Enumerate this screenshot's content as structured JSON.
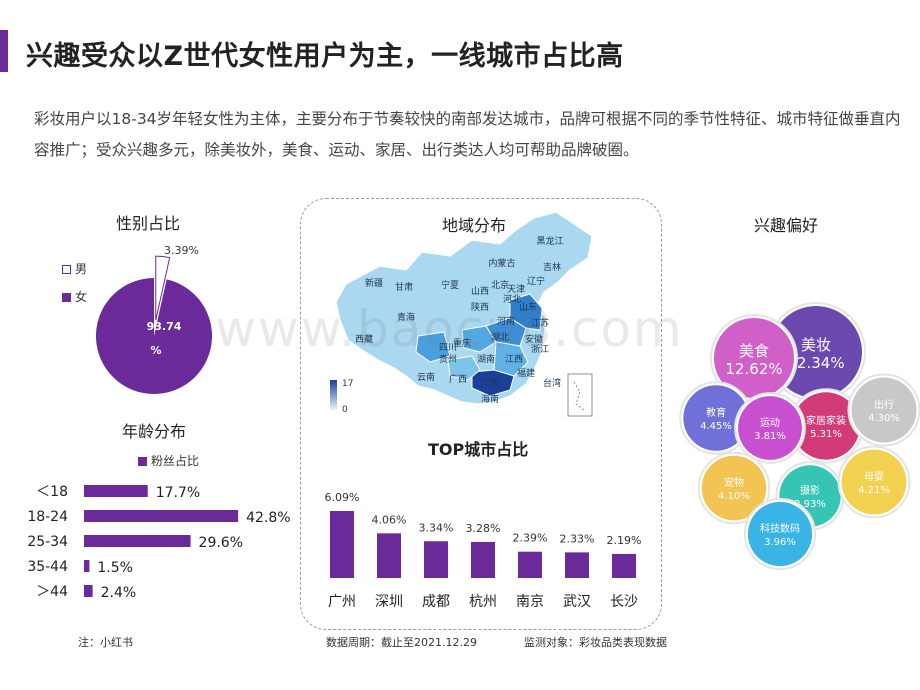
{
  "header": {
    "title": "兴趣受众以Z世代女性用户为主，一线城市占比高",
    "intro": "彩妆用户以18-34岁年轻女性为主体，主要分布于节奏较快的南部发达城市，品牌可根据不同的季节性特征、城市特征做垂直内容推广；受众兴趣多元，除美妆外，美食、运动、家居、出行类达人均可帮助品牌破圈。"
  },
  "colors": {
    "accent": "#6b2a9a",
    "bar": "#6b2a9a",
    "map_light": "#a9d8f0",
    "map_dark": "#1c3f9a"
  },
  "footer": {
    "note": "注：小红书",
    "period": "数据周期：截止至2021.12.29",
    "object": "监测对象：彩妆品类表现数据"
  },
  "watermark": "www.baocu8.com",
  "map": {
    "title": "地域分布",
    "legend_max": "17",
    "legend_min": "0",
    "regions": [
      "黑龙江",
      "吉林",
      "辽宁",
      "内蒙古",
      "新疆",
      "甘肃",
      "宁夏",
      "北京",
      "天津",
      "山西",
      "河北",
      "陕西",
      "山东",
      "青海",
      "西藏",
      "河南",
      "江苏",
      "四川",
      "湖北",
      "安徽",
      "重庆",
      "浙江",
      "江西",
      "贵州",
      "湖南",
      "云南",
      "广西",
      "福建",
      "广东",
      "台湾",
      "海南"
    ]
  },
  "chart_data": [
    {
      "type": "pie",
      "title": "性别占比",
      "categories": [
        "男",
        "女"
      ],
      "values": [
        3.39,
        93.74
      ],
      "data_labels": [
        "3.39%",
        "93.74%"
      ],
      "legend": "left"
    },
    {
      "type": "bar",
      "orientation": "horizontal",
      "title": "年龄分布",
      "categories": [
        "＜18",
        "18-24",
        "25-34",
        "35-44",
        "＞44"
      ],
      "series": [
        {
          "name": "粉丝占比",
          "values": [
            17.7,
            42.8,
            29.6,
            1.5,
            2.4
          ]
        }
      ],
      "data_labels": [
        "17.7%",
        "42.8%",
        "29.6%",
        "1.5%",
        "2.4%"
      ],
      "legend": "top"
    },
    {
      "type": "bar",
      "title": "TOP城市占比",
      "categories": [
        "广州",
        "深圳",
        "成都",
        "杭州",
        "南京",
        "武汉",
        "长沙"
      ],
      "values": [
        6.09,
        4.06,
        3.34,
        3.28,
        2.39,
        2.33,
        2.19
      ],
      "data_labels": [
        "6.09%",
        "4.06%",
        "3.34%",
        "3.28%",
        "2.39%",
        "2.33%",
        "2.19%"
      ]
    },
    {
      "type": "bubble",
      "title": "兴趣偏好",
      "items": [
        {
          "label": "美妆",
          "value": 22.34,
          "value_text": "22.34%",
          "color": "#6b4ab0"
        },
        {
          "label": "美食",
          "value": 12.62,
          "value_text": "12.62%",
          "color": "#d060c8"
        },
        {
          "label": "家居家装",
          "value": 5.31,
          "value_text": "5.31%",
          "color": "#d23a78"
        },
        {
          "label": "教育",
          "value": 4.45,
          "value_text": "4.45%",
          "color": "#7070d8"
        },
        {
          "label": "运动",
          "value": 3.81,
          "value_text": "3.81%",
          "color": "#c850d0"
        },
        {
          "label": "出行",
          "value": 4.3,
          "value_text": "4.30%",
          "color": "#c8c8c8"
        },
        {
          "label": "宠物",
          "value": 4.1,
          "value_text": "4.10%",
          "color": "#f2c454"
        },
        {
          "label": "摄影",
          "value": 2.93,
          "value_text": "2.93%",
          "color": "#36c4b4"
        },
        {
          "label": "母婴",
          "value": 4.21,
          "value_text": "4.21%",
          "color": "#f2d050"
        },
        {
          "label": "科技数码",
          "value": 3.96,
          "value_text": "3.96%",
          "color": "#3ab4e4"
        }
      ]
    }
  ]
}
